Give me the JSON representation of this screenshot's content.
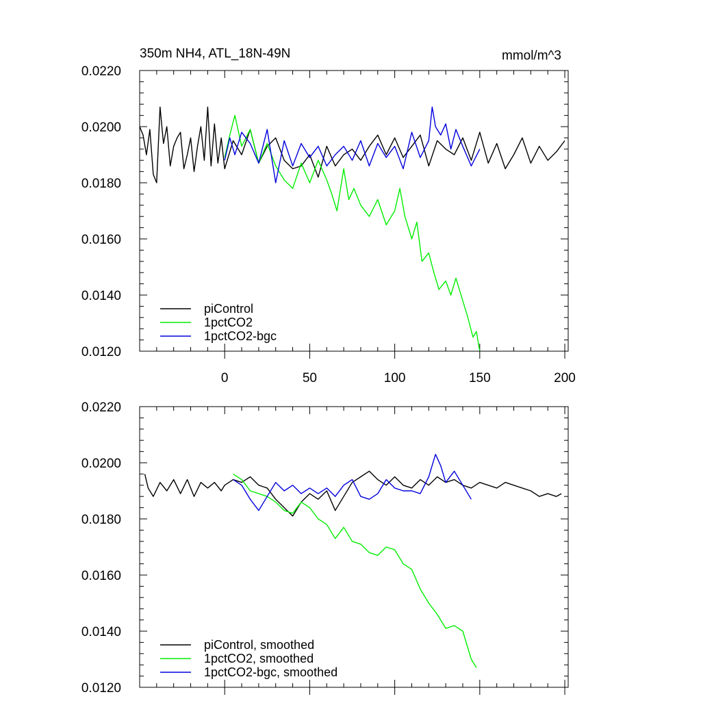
{
  "chart_data": [
    {
      "type": "line",
      "title": "350m NH4, ATL_18N-49N",
      "units": "mmol/m^3",
      "xlim": [
        -50,
        202
      ],
      "ylim": [
        0.012,
        0.022
      ],
      "yticks": [
        "0.0220",
        "0.0200",
        "0.0180",
        "0.0160",
        "0.0140",
        "0.0120"
      ],
      "xticks": [
        "0",
        "50",
        "100",
        "150",
        "200"
      ],
      "grid": false,
      "legend": "bottom-left",
      "series": [
        {
          "name": "piControl",
          "color": "#000000",
          "x": [
            -50,
            -48,
            -46,
            -44,
            -42,
            -40,
            -38,
            -36,
            -34,
            -32,
            -30,
            -28,
            -26,
            -24,
            -22,
            -20,
            -18,
            -16,
            -14,
            -12,
            -10,
            -8,
            -6,
            -4,
            -2,
            0,
            5,
            10,
            15,
            20,
            25,
            30,
            35,
            40,
            45,
            50,
            55,
            60,
            65,
            70,
            75,
            80,
            85,
            90,
            95,
            100,
            105,
            110,
            115,
            120,
            125,
            130,
            135,
            140,
            145,
            150,
            155,
            160,
            165,
            170,
            175,
            180,
            185,
            190,
            195,
            200
          ],
          "values": [
            0.02,
            0.0197,
            0.019,
            0.0199,
            0.0183,
            0.018,
            0.0207,
            0.0194,
            0.02,
            0.0186,
            0.0193,
            0.0196,
            0.0198,
            0.0185,
            0.019,
            0.0196,
            0.0184,
            0.0193,
            0.02,
            0.0188,
            0.0207,
            0.0186,
            0.0201,
            0.0187,
            0.0196,
            0.0185,
            0.0195,
            0.019,
            0.0199,
            0.0187,
            0.0193,
            0.0196,
            0.0188,
            0.0185,
            0.0186,
            0.019,
            0.0182,
            0.0193,
            0.0186,
            0.019,
            0.0192,
            0.0188,
            0.0193,
            0.0197,
            0.019,
            0.0196,
            0.0189,
            0.0193,
            0.0197,
            0.0186,
            0.0195,
            0.0192,
            0.019,
            0.0196,
            0.0188,
            0.0198,
            0.0187,
            0.0194,
            0.0185,
            0.019,
            0.0196,
            0.0187,
            0.0193,
            0.0188,
            0.0191,
            0.0195
          ]
        },
        {
          "name": "1pctCO2",
          "color": "#00ee00",
          "x": [
            0,
            3,
            6,
            10,
            15,
            20,
            25,
            30,
            35,
            40,
            45,
            50,
            55,
            60,
            63,
            66,
            70,
            73,
            76,
            80,
            85,
            90,
            95,
            100,
            103,
            106,
            110,
            113,
            116,
            120,
            123,
            126,
            130,
            133,
            136,
            140,
            143,
            146,
            148,
            150
          ],
          "values": [
            0.0189,
            0.0197,
            0.0204,
            0.0193,
            0.0199,
            0.0187,
            0.0194,
            0.0186,
            0.0181,
            0.0178,
            0.0187,
            0.018,
            0.0188,
            0.0181,
            0.0176,
            0.017,
            0.0185,
            0.0174,
            0.0178,
            0.0172,
            0.0168,
            0.0174,
            0.0165,
            0.017,
            0.0178,
            0.0168,
            0.016,
            0.0166,
            0.0152,
            0.0155,
            0.0148,
            0.0142,
            0.0145,
            0.014,
            0.0146,
            0.0138,
            0.0132,
            0.0125,
            0.0127,
            0.012
          ]
        },
        {
          "name": "1pctCO2-bgc",
          "color": "#0000dd",
          "x": [
            0,
            3,
            6,
            10,
            15,
            20,
            25,
            30,
            35,
            40,
            45,
            50,
            55,
            60,
            65,
            70,
            75,
            80,
            85,
            90,
            95,
            100,
            105,
            110,
            115,
            120,
            122,
            124,
            127,
            130,
            133,
            136,
            140,
            145,
            150
          ],
          "values": [
            0.0188,
            0.0196,
            0.019,
            0.0198,
            0.0194,
            0.0187,
            0.0199,
            0.018,
            0.0195,
            0.0186,
            0.0194,
            0.0189,
            0.0193,
            0.0186,
            0.019,
            0.0193,
            0.0188,
            0.0195,
            0.0186,
            0.0194,
            0.0189,
            0.0193,
            0.0185,
            0.0198,
            0.0189,
            0.0195,
            0.0207,
            0.02,
            0.0197,
            0.0201,
            0.0192,
            0.0199,
            0.0193,
            0.0186,
            0.0192
          ]
        }
      ]
    },
    {
      "type": "line",
      "xlim": [
        -50,
        202
      ],
      "ylim": [
        0.012,
        0.022
      ],
      "yticks": [
        "0.0220",
        "0.0200",
        "0.0180",
        "0.0160",
        "0.0140",
        "0.0120"
      ],
      "grid": false,
      "legend": "bottom-left",
      "series": [
        {
          "name": "piControl, smoothed",
          "color": "#000000",
          "x": [
            -47,
            -45,
            -42,
            -38,
            -34,
            -30,
            -26,
            -22,
            -18,
            -14,
            -10,
            -6,
            -2,
            0,
            5,
            10,
            15,
            20,
            25,
            30,
            35,
            40,
            45,
            50,
            55,
            60,
            65,
            70,
            75,
            80,
            85,
            90,
            95,
            100,
            105,
            110,
            115,
            120,
            125,
            130,
            135,
            140,
            145,
            150,
            155,
            160,
            165,
            170,
            175,
            180,
            185,
            190,
            195,
            198
          ],
          "values": [
            0.0196,
            0.0191,
            0.0188,
            0.0193,
            0.019,
            0.0194,
            0.0189,
            0.0194,
            0.0188,
            0.0193,
            0.0191,
            0.0193,
            0.019,
            0.0192,
            0.0194,
            0.0193,
            0.0195,
            0.0192,
            0.0191,
            0.0187,
            0.0184,
            0.0181,
            0.0186,
            0.0189,
            0.0187,
            0.019,
            0.0183,
            0.0188,
            0.0193,
            0.0195,
            0.0197,
            0.0194,
            0.0192,
            0.0195,
            0.0192,
            0.0191,
            0.0194,
            0.0192,
            0.0195,
            0.0193,
            0.0194,
            0.0192,
            0.0191,
            0.0193,
            0.0192,
            0.0191,
            0.0193,
            0.0192,
            0.0191,
            0.019,
            0.0188,
            0.0189,
            0.0188,
            0.0189
          ]
        },
        {
          "name": "1pctCO2, smoothed",
          "color": "#00ee00",
          "x": [
            5,
            10,
            15,
            20,
            25,
            30,
            35,
            40,
            45,
            50,
            55,
            60,
            65,
            70,
            75,
            80,
            85,
            90,
            95,
            100,
            105,
            110,
            115,
            120,
            125,
            130,
            135,
            140,
            145,
            148
          ],
          "values": [
            0.0196,
            0.0194,
            0.019,
            0.0189,
            0.0188,
            0.0186,
            0.0183,
            0.0182,
            0.0186,
            0.0184,
            0.018,
            0.0178,
            0.0173,
            0.0177,
            0.0172,
            0.0171,
            0.0168,
            0.0167,
            0.017,
            0.0169,
            0.0164,
            0.0162,
            0.0155,
            0.015,
            0.0146,
            0.0141,
            0.0142,
            0.014,
            0.013,
            0.0127
          ]
        },
        {
          "name": "1pctCO2-bgc, smoothed",
          "color": "#0000dd",
          "x": [
            5,
            10,
            15,
            20,
            25,
            30,
            35,
            40,
            45,
            50,
            55,
            60,
            65,
            70,
            75,
            80,
            85,
            90,
            95,
            100,
            105,
            110,
            115,
            120,
            124,
            127,
            130,
            135,
            140,
            145
          ],
          "values": [
            0.0194,
            0.0192,
            0.0187,
            0.0183,
            0.0188,
            0.0193,
            0.019,
            0.0192,
            0.0189,
            0.0191,
            0.0189,
            0.0191,
            0.0188,
            0.0192,
            0.0194,
            0.0188,
            0.0187,
            0.0189,
            0.0194,
            0.0191,
            0.019,
            0.019,
            0.0189,
            0.0195,
            0.0203,
            0.0199,
            0.0193,
            0.0197,
            0.0192,
            0.0187
          ]
        }
      ]
    }
  ]
}
